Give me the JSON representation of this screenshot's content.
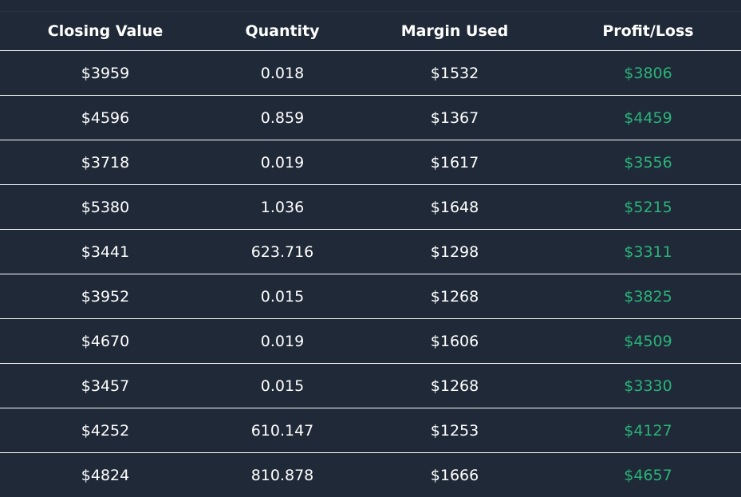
{
  "table": {
    "columns": [
      "Closing Value",
      "Quantity",
      "Margin Used",
      "Profit/Loss"
    ],
    "rows": [
      [
        "$3959",
        "0.018",
        "$1532",
        "$3806"
      ],
      [
        "$4596",
        "0.859",
        "$1367",
        "$4459"
      ],
      [
        "$3718",
        "0.019",
        "$1617",
        "$3556"
      ],
      [
        "$5380",
        "1.036",
        "$1648",
        "$5215"
      ],
      [
        "$3441",
        "623.716",
        "$1298",
        "$3311"
      ],
      [
        "$3952",
        "0.015",
        "$1268",
        "$3825"
      ],
      [
        "$4670",
        "0.019",
        "$1606",
        "$4509"
      ],
      [
        "$3457",
        "0.015",
        "$1268",
        "$3330"
      ],
      [
        "$4252",
        "610.147",
        "$1253",
        "$4127"
      ],
      [
        "$4824",
        "810.878",
        "$1666",
        "$4657"
      ]
    ]
  },
  "colors": {
    "background": "#1f2937",
    "text": "#ffffff",
    "profit": "#2bb37a",
    "divider": "#ffffff"
  }
}
